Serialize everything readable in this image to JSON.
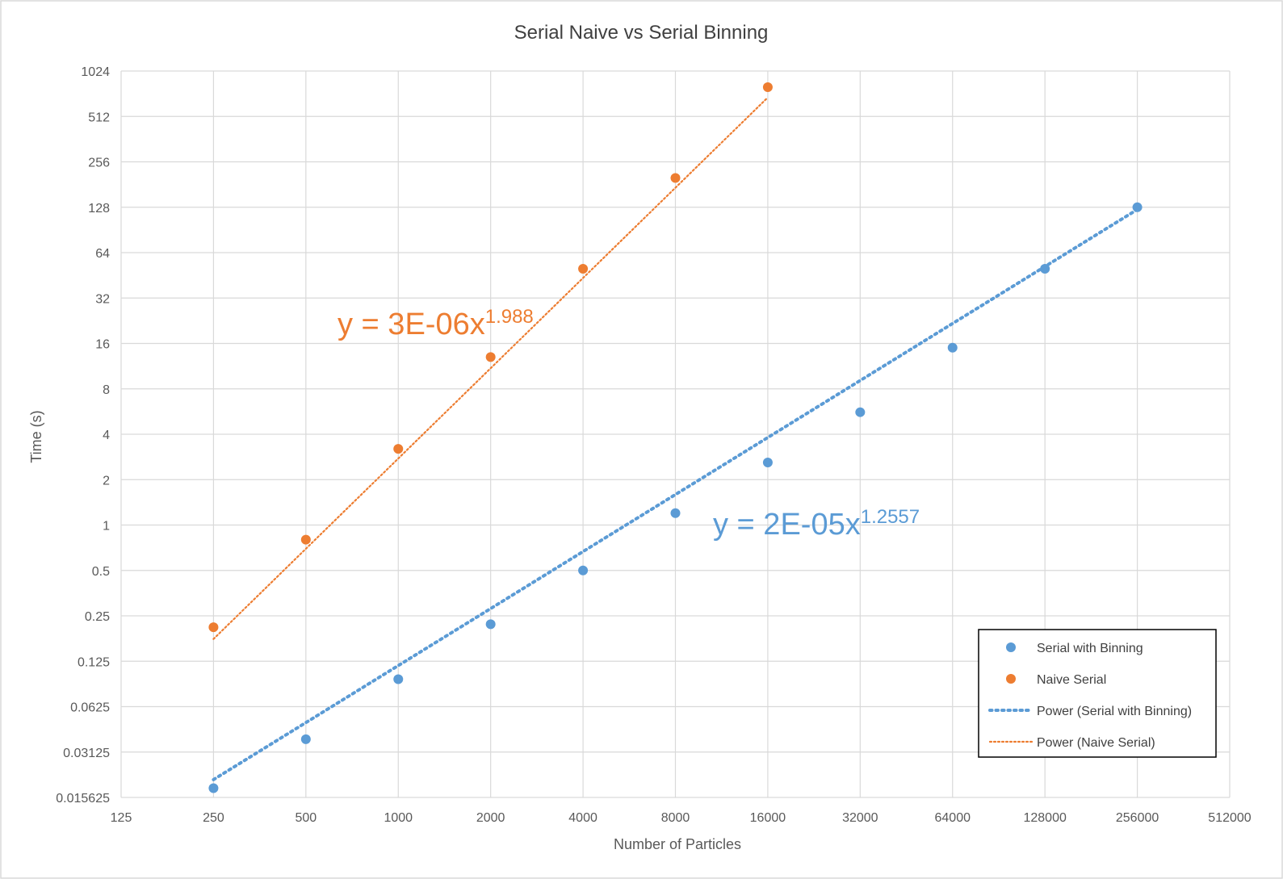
{
  "chart_data": {
    "type": "scatter",
    "title": "Serial Naive vs Serial Binning",
    "xlabel": "Number of Particles",
    "ylabel": "Time (s)",
    "x_scale": "log2",
    "y_scale": "log2",
    "xlim": [
      125,
      512000
    ],
    "ylim": [
      0.015625,
      1024
    ],
    "x_ticks": [
      125,
      250,
      500,
      1000,
      2000,
      4000,
      8000,
      16000,
      32000,
      64000,
      128000,
      256000,
      512000
    ],
    "x_tick_labels": [
      "125",
      "250",
      "500",
      "1000",
      "2000",
      "4000",
      "8000",
      "16000",
      "32000",
      "64000",
      "128000",
      "256000",
      "512000"
    ],
    "y_ticks": [
      0.015625,
      0.03125,
      0.0625,
      0.125,
      0.25,
      0.5,
      1,
      2,
      4,
      8,
      16,
      32,
      64,
      128,
      256,
      512,
      1024
    ],
    "y_tick_labels": [
      "0.015625",
      "0.03125",
      "0.0625",
      "0.125",
      "0.25",
      "0.5",
      "1",
      "2",
      "4",
      "8",
      "16",
      "32",
      "64",
      "128",
      "256",
      "512",
      "1024"
    ],
    "grid": true,
    "legend_position": "bottom-right",
    "series": [
      {
        "name": "Serial with Binning",
        "color": "#5b9bd5",
        "x": [
          250,
          500,
          1000,
          2000,
          4000,
          8000,
          16000,
          32000,
          64000,
          128000,
          256000
        ],
        "y": [
          0.018,
          0.038,
          0.095,
          0.22,
          0.5,
          1.2,
          2.6,
          5.6,
          15,
          50,
          128
        ]
      },
      {
        "name": "Naive Serial",
        "color": "#ed7d31",
        "x": [
          250,
          500,
          1000,
          2000,
          4000,
          8000,
          16000
        ],
        "y": [
          0.21,
          0.8,
          3.2,
          13,
          50,
          200,
          800
        ]
      }
    ],
    "trendlines": [
      {
        "name": "Power  (Serial with Binning)",
        "color": "#5b9bd5",
        "type": "power",
        "coef": 2e-05,
        "exponent": 1.2557,
        "x_range": [
          250,
          256000
        ],
        "equation_base": "y = 2E-05x",
        "equation_exp": "1.2557"
      },
      {
        "name": "Power  (Naive Serial)",
        "color": "#ed7d31",
        "type": "power",
        "coef": 3e-06,
        "exponent": 1.988,
        "x_range": [
          250,
          16000
        ],
        "equation_base": "y = 3E-06x",
        "equation_exp": "1.988"
      }
    ]
  }
}
